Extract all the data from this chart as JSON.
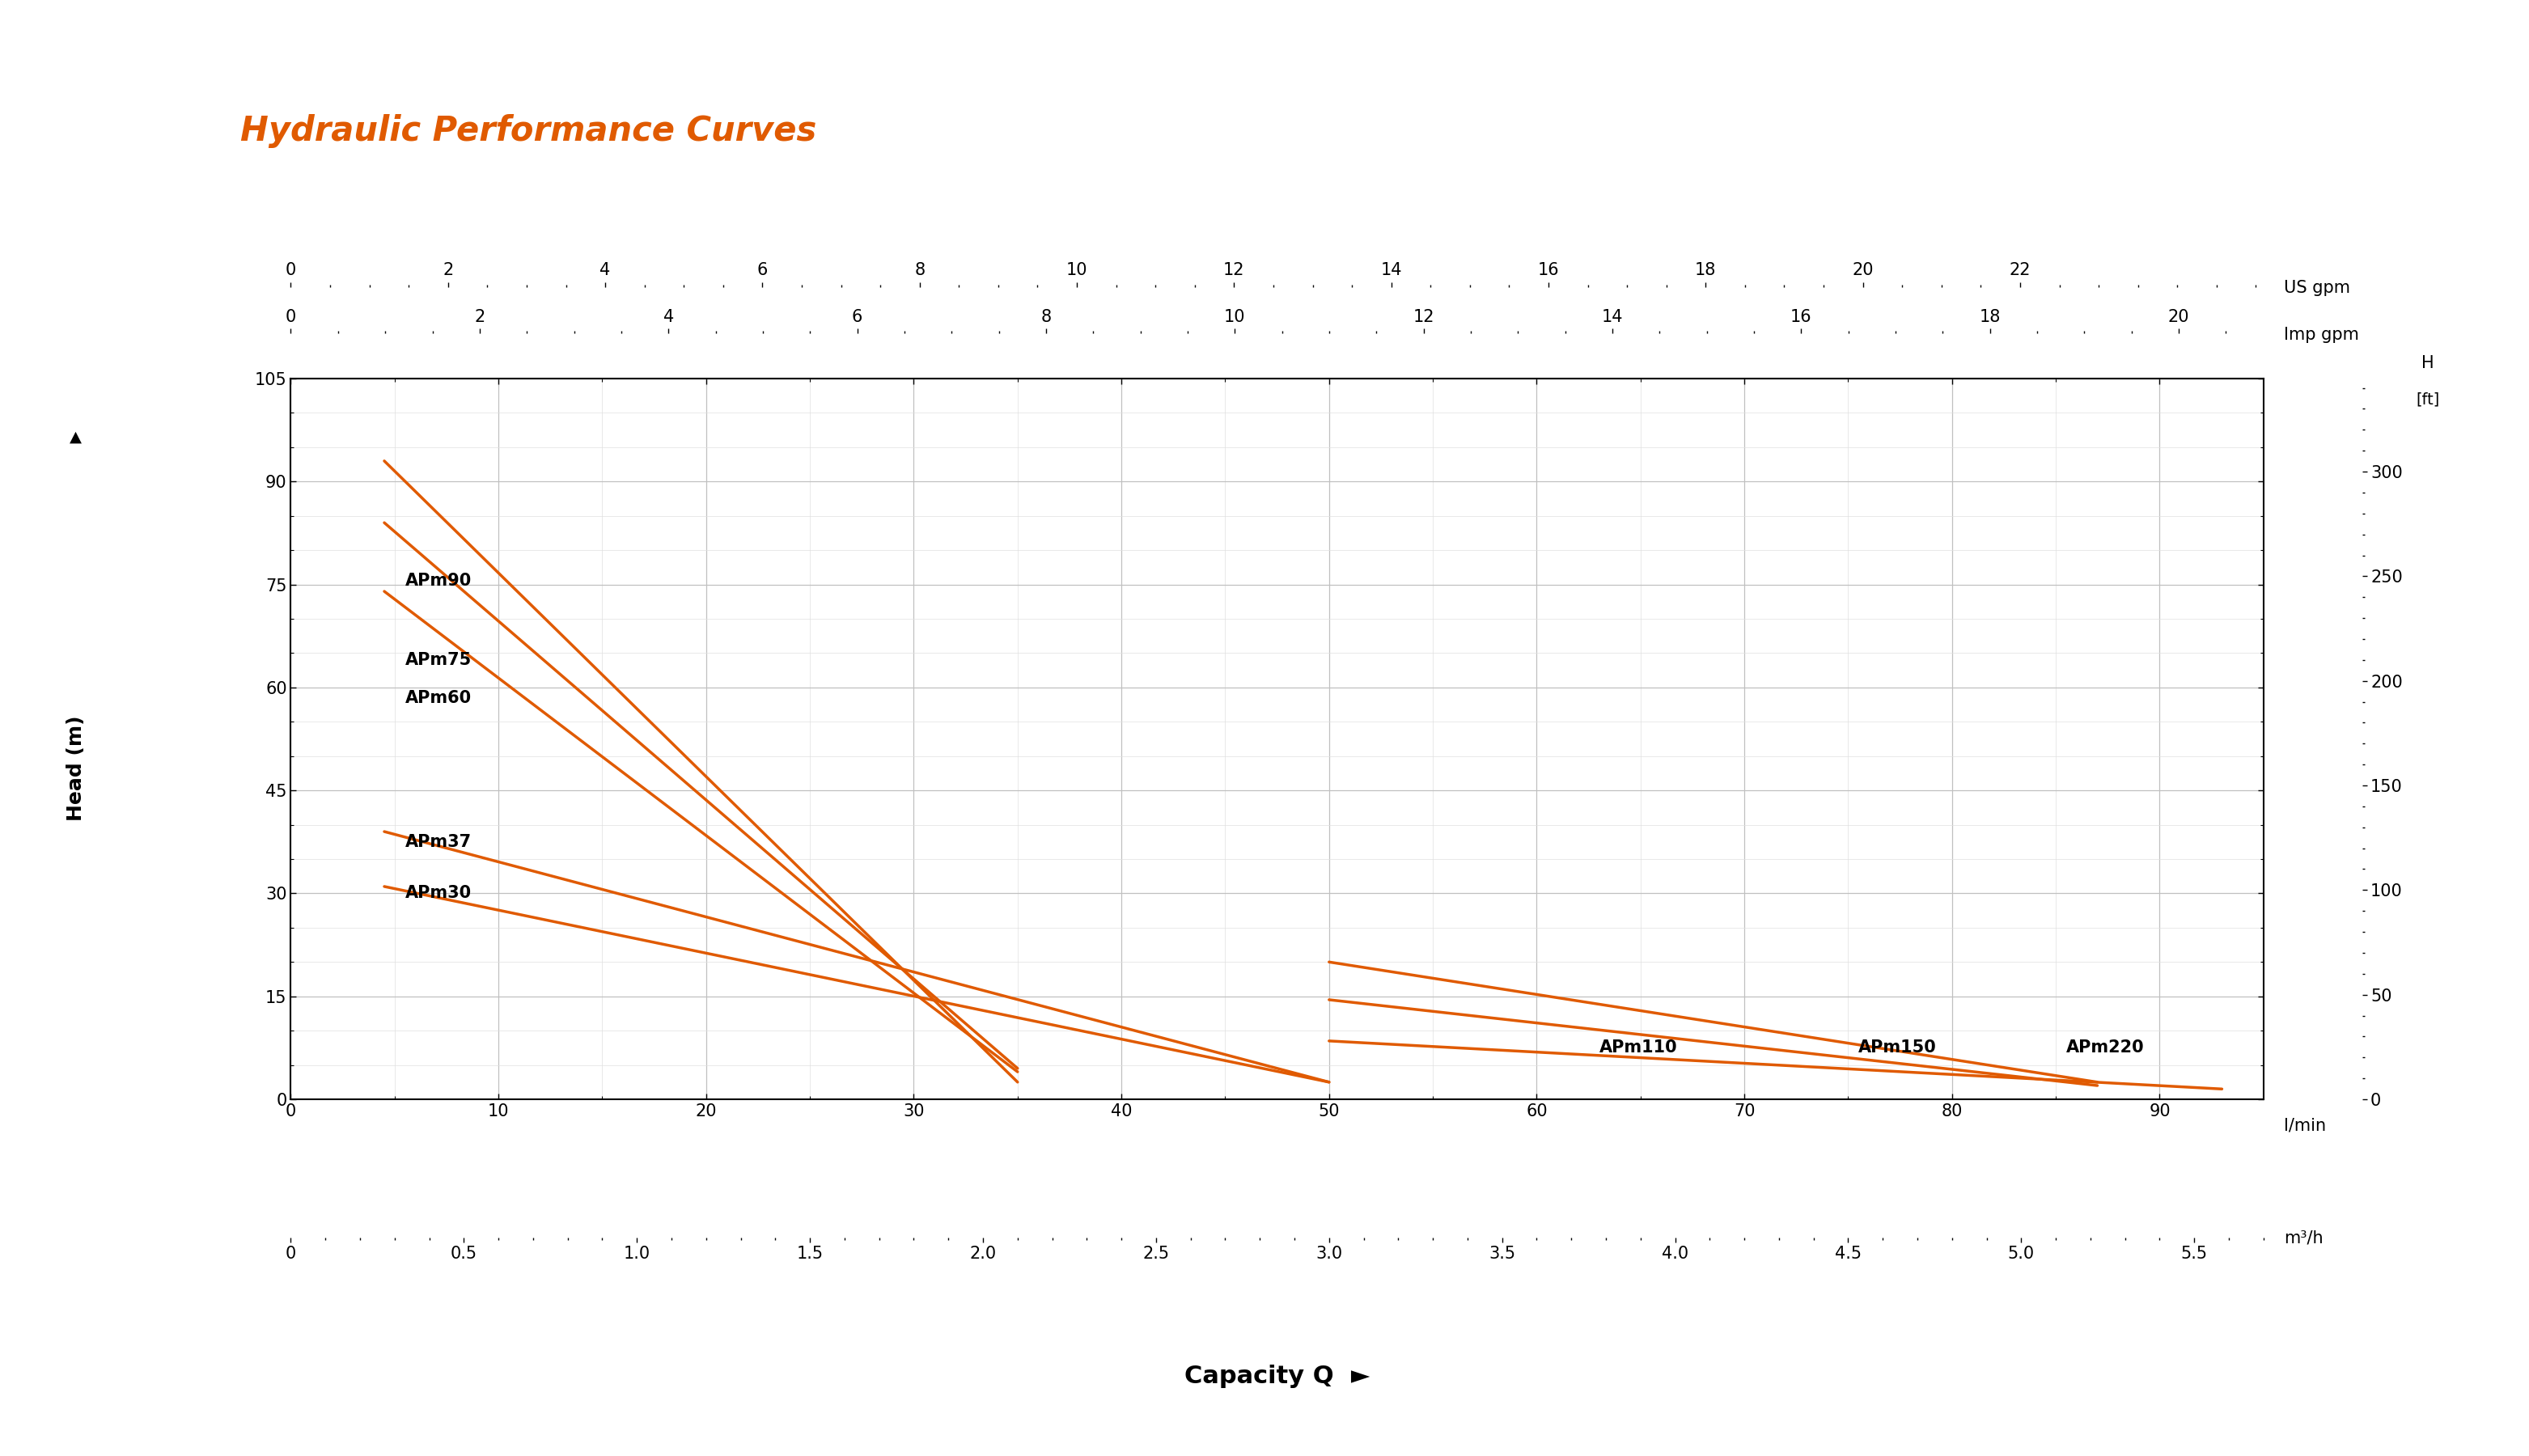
{
  "title": "Hydraulic Performance Curves",
  "title_color": "#E05A00",
  "curve_color": "#E05A00",
  "background_color": "#ffffff",
  "grid_color_major": "#c0c0c0",
  "grid_color_minor": "#e0e0e0",
  "curves": {
    "APm90": {
      "x": [
        4.5,
        35.0
      ],
      "y": [
        93.0,
        2.5
      ]
    },
    "APm75": {
      "x": [
        4.5,
        35.0
      ],
      "y": [
        84.0,
        4.5
      ]
    },
    "APm60": {
      "x": [
        4.5,
        35.0
      ],
      "y": [
        74.0,
        4.0
      ]
    },
    "APm37": {
      "x": [
        4.5,
        50.0
      ],
      "y": [
        39.0,
        2.5
      ]
    },
    "APm30": {
      "x": [
        4.5,
        50.0
      ],
      "y": [
        31.0,
        2.5
      ]
    },
    "APm110": {
      "x": [
        50.0,
        87.0
      ],
      "y": [
        20.0,
        2.5
      ]
    },
    "APm150": {
      "x": [
        50.0,
        87.0
      ],
      "y": [
        14.5,
        2.0
      ]
    },
    "APm220": {
      "x": [
        50.0,
        93.0
      ],
      "y": [
        8.5,
        1.5
      ]
    }
  },
  "label_positions": {
    "APm90": [
      5.5,
      75.5,
      "left",
      "center"
    ],
    "APm75": [
      5.5,
      64.0,
      "left",
      "center"
    ],
    "APm60": [
      5.5,
      58.5,
      "left",
      "center"
    ],
    "APm37": [
      5.5,
      37.5,
      "left",
      "center"
    ],
    "APm30": [
      5.5,
      30.0,
      "left",
      "center"
    ],
    "APm110": [
      63.0,
      7.5,
      "left",
      "center"
    ],
    "APm150": [
      75.5,
      7.5,
      "left",
      "center"
    ],
    "APm220": [
      85.5,
      7.5,
      "left",
      "center"
    ]
  },
  "xlim_lmin": [
    0,
    95
  ],
  "ylim_m": [
    0,
    105
  ],
  "xticks_lmin_major": [
    0,
    10,
    20,
    30,
    40,
    50,
    60,
    70,
    80,
    90
  ],
  "xticks_lmin_minor": [
    5,
    15,
    25,
    35,
    45,
    55,
    65,
    75,
    85
  ],
  "yticks_m_major": [
    0,
    15,
    30,
    45,
    60,
    75,
    90,
    105
  ],
  "yticks_m_minor": [
    5,
    10,
    20,
    25,
    35,
    40,
    50,
    55,
    65,
    70,
    80,
    85,
    95,
    100
  ],
  "xticks_m3h": [
    0,
    0.5,
    1.0,
    1.5,
    2.0,
    2.5,
    3.0,
    3.5,
    4.0,
    4.5,
    5.0,
    5.5
  ],
  "yticks_ft": [
    0,
    50,
    100,
    150,
    200,
    250,
    300
  ],
  "xticks_usgpm": [
    0,
    2,
    4,
    6,
    8,
    10,
    12,
    14,
    16,
    18,
    20,
    22
  ],
  "xticks_impgpm": [
    0,
    2,
    4,
    6,
    8,
    10,
    12,
    14,
    16,
    18,
    20
  ],
  "lmin_to_usgpm": 0.26417,
  "lmin_to_impgpm": 0.21997,
  "lmin_to_m3h": 0.016667,
  "m_to_ft": 3.2808,
  "label_fontsize": 16,
  "tick_fontsize": 15,
  "curve_linewidth": 2.5,
  "title_fontsize": 30
}
